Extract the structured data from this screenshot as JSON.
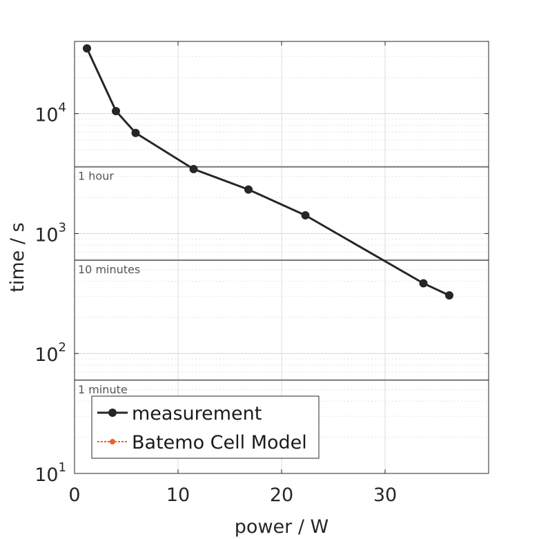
{
  "chart_data": {
    "type": "line",
    "xlabel": "power / W",
    "ylabel": "time / s",
    "xlim": [
      0,
      40
    ],
    "ylim": [
      10,
      40000
    ],
    "yscale": "log",
    "grid": true,
    "legend_position": "bottom-left",
    "x_ticks": [
      {
        "value": 0,
        "label": "0"
      },
      {
        "value": 10,
        "label": "10"
      },
      {
        "value": 20,
        "label": "20"
      },
      {
        "value": 30,
        "label": "30"
      }
    ],
    "y_ticks": [
      {
        "value": 10,
        "base": "10",
        "exp": "1"
      },
      {
        "value": 100,
        "base": "10",
        "exp": "2"
      },
      {
        "value": 1000,
        "base": "10",
        "exp": "3"
      },
      {
        "value": 10000,
        "base": "10",
        "exp": "4"
      }
    ],
    "reference_lines": [
      {
        "y": 3600,
        "label": "1 hour"
      },
      {
        "y": 600,
        "label": "10 minutes"
      },
      {
        "y": 60,
        "label": "1 minute"
      }
    ],
    "series": [
      {
        "name": "measurement",
        "color": "#262626",
        "x": [
          1.2,
          4.0,
          5.9,
          11.5,
          16.8,
          22.3,
          33.7,
          36.2
        ],
        "y": [
          35000,
          10500,
          6900,
          3450,
          2330,
          1420,
          385,
          305
        ]
      },
      {
        "name": "Batemo Cell Model",
        "color": "#e8622a",
        "x": [],
        "y": []
      }
    ]
  }
}
